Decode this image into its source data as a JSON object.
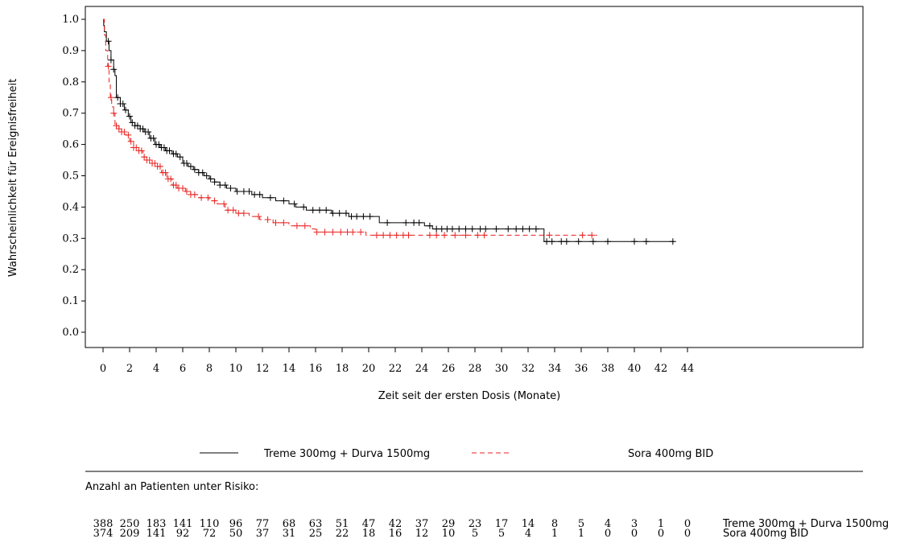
{
  "chart_data": {
    "type": "line",
    "subtype": "kaplan-meier",
    "title": "",
    "xlabel": "Zeit seit der ersten Dosis (Monate)",
    "ylabel": "Wahrscheinlichkeit für Ereignisfreiheit",
    "xlim": [
      0,
      44
    ],
    "ylim": [
      0.0,
      1.0
    ],
    "x_ticks": [
      0,
      2,
      4,
      6,
      8,
      10,
      12,
      14,
      16,
      18,
      20,
      22,
      24,
      26,
      28,
      30,
      32,
      34,
      36,
      38,
      40,
      42,
      44
    ],
    "y_ticks": [
      "0.0",
      "0.1",
      "0.2",
      "0.3",
      "0.4",
      "0.5",
      "0.6",
      "0.7",
      "0.8",
      "0.9",
      "1.0"
    ],
    "grid": false,
    "legend_position": "bottom",
    "series": [
      {
        "name": "Treme 300mg + Durva 1500mg",
        "color": "#000000",
        "dash": "solid",
        "steps": [
          [
            0,
            1.0
          ],
          [
            0.05,
            0.98
          ],
          [
            0.1,
            0.96
          ],
          [
            0.25,
            0.93
          ],
          [
            0.45,
            0.9
          ],
          [
            0.6,
            0.87
          ],
          [
            0.8,
            0.84
          ],
          [
            0.9,
            0.82
          ],
          [
            1.0,
            0.75
          ],
          [
            1.3,
            0.73
          ],
          [
            1.6,
            0.71
          ],
          [
            1.9,
            0.69
          ],
          [
            2.1,
            0.67
          ],
          [
            2.4,
            0.66
          ],
          [
            2.8,
            0.65
          ],
          [
            3.1,
            0.64
          ],
          [
            3.5,
            0.62
          ],
          [
            3.9,
            0.6
          ],
          [
            4.3,
            0.59
          ],
          [
            4.7,
            0.58
          ],
          [
            5.2,
            0.57
          ],
          [
            5.6,
            0.56
          ],
          [
            6.0,
            0.54
          ],
          [
            6.4,
            0.53
          ],
          [
            6.8,
            0.52
          ],
          [
            7.2,
            0.51
          ],
          [
            7.6,
            0.5
          ],
          [
            8.0,
            0.49
          ],
          [
            8.4,
            0.48
          ],
          [
            8.8,
            0.47
          ],
          [
            9.3,
            0.46
          ],
          [
            10.0,
            0.45
          ],
          [
            10.6,
            0.45
          ],
          [
            11.2,
            0.44
          ],
          [
            12.0,
            0.43
          ],
          [
            13.0,
            0.42
          ],
          [
            14.0,
            0.41
          ],
          [
            14.5,
            0.4
          ],
          [
            15.3,
            0.39
          ],
          [
            16.5,
            0.39
          ],
          [
            17.2,
            0.38
          ],
          [
            18.0,
            0.38
          ],
          [
            18.5,
            0.37
          ],
          [
            20.8,
            0.35
          ],
          [
            24.2,
            0.34
          ],
          [
            24.8,
            0.33
          ],
          [
            33.2,
            0.29
          ],
          [
            43.0,
            0.29
          ]
        ],
        "censor": [
          0.4,
          0.6,
          0.8,
          1.1,
          1.3,
          1.5,
          1.7,
          2.0,
          2.2,
          2.4,
          2.6,
          2.8,
          3.0,
          3.2,
          3.4,
          3.6,
          3.8,
          4.0,
          4.2,
          4.4,
          4.6,
          4.8,
          5.0,
          5.3,
          5.5,
          5.8,
          6.1,
          6.3,
          6.6,
          6.9,
          7.2,
          7.5,
          7.8,
          8.1,
          8.4,
          8.8,
          9.2,
          9.6,
          10.1,
          10.6,
          11.0,
          11.4,
          11.8,
          12.6,
          13.6,
          14.4,
          15.1,
          15.8,
          16.3,
          16.8,
          17.3,
          17.8,
          18.3,
          18.7,
          19.1,
          19.6,
          20.1,
          21.4,
          22.8,
          23.4,
          23.8,
          24.6,
          25.1,
          25.5,
          25.9,
          26.3,
          26.8,
          27.3,
          27.8,
          28.4,
          28.8,
          29.6,
          30.5,
          31.1,
          31.6,
          32.1,
          32.6,
          33.4,
          33.8,
          34.5,
          34.9,
          35.8,
          36.9,
          38.0,
          40.0,
          40.9,
          42.9
        ],
        "risk": [
          388,
          250,
          183,
          141,
          110,
          96,
          77,
          68,
          63,
          51,
          47,
          42,
          37,
          29,
          23,
          17,
          14,
          8,
          5,
          4,
          3,
          1,
          0
        ]
      },
      {
        "name": "Sora 400mg BID",
        "color": "#e8211f",
        "dash": "dashed",
        "steps": [
          [
            0,
            1.0
          ],
          [
            0.1,
            0.95
          ],
          [
            0.2,
            0.9
          ],
          [
            0.35,
            0.85
          ],
          [
            0.45,
            0.8
          ],
          [
            0.55,
            0.75
          ],
          [
            0.65,
            0.72
          ],
          [
            0.8,
            0.7
          ],
          [
            0.9,
            0.66
          ],
          [
            1.2,
            0.65
          ],
          [
            1.4,
            0.64
          ],
          [
            1.7,
            0.63
          ],
          [
            2.0,
            0.61
          ],
          [
            2.3,
            0.59
          ],
          [
            2.7,
            0.58
          ],
          [
            3.0,
            0.56
          ],
          [
            3.3,
            0.55
          ],
          [
            3.7,
            0.54
          ],
          [
            4.1,
            0.53
          ],
          [
            4.4,
            0.51
          ],
          [
            4.8,
            0.49
          ],
          [
            5.2,
            0.47
          ],
          [
            5.6,
            0.46
          ],
          [
            6.2,
            0.45
          ],
          [
            6.6,
            0.44
          ],
          [
            7.2,
            0.43
          ],
          [
            8.0,
            0.42
          ],
          [
            8.6,
            0.41
          ],
          [
            9.2,
            0.39
          ],
          [
            10.0,
            0.38
          ],
          [
            11.0,
            0.37
          ],
          [
            11.8,
            0.36
          ],
          [
            12.8,
            0.35
          ],
          [
            14.0,
            0.34
          ],
          [
            15.6,
            0.33
          ],
          [
            16.0,
            0.32
          ],
          [
            18.3,
            0.32
          ],
          [
            19.8,
            0.31
          ],
          [
            33.0,
            0.31
          ],
          [
            37.2,
            0.31
          ]
        ],
        "censor": [
          0.4,
          0.6,
          0.8,
          1.0,
          1.2,
          1.4,
          1.6,
          1.9,
          2.1,
          2.3,
          2.5,
          2.7,
          2.9,
          3.1,
          3.3,
          3.5,
          3.7,
          3.9,
          4.1,
          4.3,
          4.5,
          4.7,
          4.9,
          5.1,
          5.3,
          5.5,
          5.7,
          6.0,
          6.3,
          6.6,
          6.9,
          7.4,
          7.9,
          8.4,
          9.1,
          9.4,
          9.8,
          10.2,
          10.6,
          11.7,
          12.4,
          13.0,
          13.6,
          14.6,
          15.2,
          16.1,
          16.7,
          17.3,
          17.9,
          18.4,
          18.8,
          19.4,
          20.6,
          21.1,
          21.6,
          22.1,
          22.6,
          23.0,
          24.6,
          25.1,
          25.7,
          26.5,
          27.3,
          28.2,
          28.7,
          33.6,
          36.1,
          36.8
        ],
        "risk": [
          374,
          209,
          141,
          92,
          72,
          50,
          37,
          31,
          25,
          22,
          18,
          16,
          12,
          10,
          5,
          5,
          4,
          1,
          1,
          0,
          0,
          0,
          0
        ]
      }
    ],
    "risk_table": {
      "title": "Anzahl an Patienten unter Risiko:",
      "times": [
        0,
        2,
        4,
        6,
        8,
        10,
        12,
        14,
        16,
        18,
        20,
        22,
        24,
        26,
        28,
        30,
        32,
        34,
        36,
        38,
        40,
        42,
        44
      ]
    }
  }
}
